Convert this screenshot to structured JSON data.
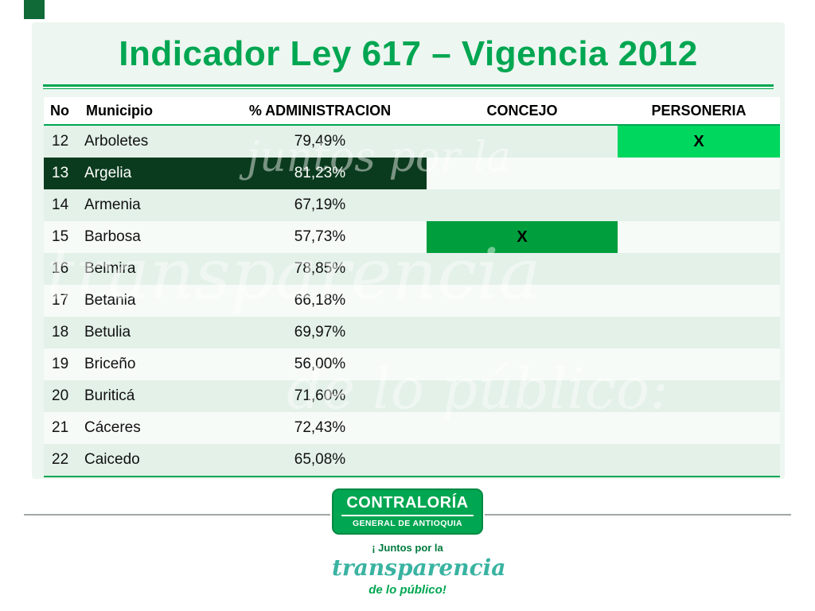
{
  "slide": {
    "title": "Indicador Ley 617 – Vigencia 2012"
  },
  "table": {
    "columns": [
      "No",
      "Municipio",
      "% ADMINISTRACION",
      "CONCEJO",
      "PERSONERIA"
    ],
    "rows": [
      {
        "no": "12",
        "municipio": "Arboletes",
        "admin": "79,49%",
        "concejo": "",
        "personeria": "X",
        "personeria_highlight": true
      },
      {
        "no": "13",
        "municipio": "Argelia",
        "admin": "81,23%",
        "concejo": "",
        "personeria": "",
        "row_highlight": true
      },
      {
        "no": "14",
        "municipio": "Armenia",
        "admin": "67,19%",
        "concejo": "",
        "personeria": ""
      },
      {
        "no": "15",
        "municipio": "Barbosa",
        "admin": "57,73%",
        "concejo": "X",
        "personeria": "",
        "concejo_highlight": true
      },
      {
        "no": "16",
        "municipio": "Belmira",
        "admin": "78,85%",
        "concejo": "",
        "personeria": ""
      },
      {
        "no": "17",
        "municipio": "Betania",
        "admin": "66,18%",
        "concejo": "",
        "personeria": ""
      },
      {
        "no": "18",
        "municipio": "Betulia",
        "admin": "69,97%",
        "concejo": "",
        "personeria": ""
      },
      {
        "no": "19",
        "municipio": "Briceño",
        "admin": "56,00%",
        "concejo": "",
        "personeria": ""
      },
      {
        "no": "20",
        "municipio": "Buriticá",
        "admin": "71,60%",
        "concejo": "",
        "personeria": ""
      },
      {
        "no": "21",
        "municipio": "Cáceres",
        "admin": "72,43%",
        "concejo": "",
        "personeria": ""
      },
      {
        "no": "22",
        "municipio": "Caicedo",
        "admin": "65,08%",
        "concejo": "",
        "personeria": ""
      }
    ]
  },
  "watermark": {
    "lines": [
      "juntos por la",
      "transparencia",
      "de lo público:"
    ]
  },
  "footer": {
    "logo_line1": "CONTRALORÍA",
    "logo_line2": "GENERAL DE ANTIOQUIA",
    "slogan1": "¡ Juntos por la",
    "slogan2": "transparencia",
    "slogan3": "de lo público!"
  },
  "colors": {
    "accent_green": "#00a651",
    "row_highlight_dark_green": "#0b3b1e",
    "personeria_cell_green": "#00d75f",
    "concejo_cell_green": "#009e3d",
    "panel_mint": "#edf6f0",
    "slogan_teal": "#3ab3a1"
  }
}
